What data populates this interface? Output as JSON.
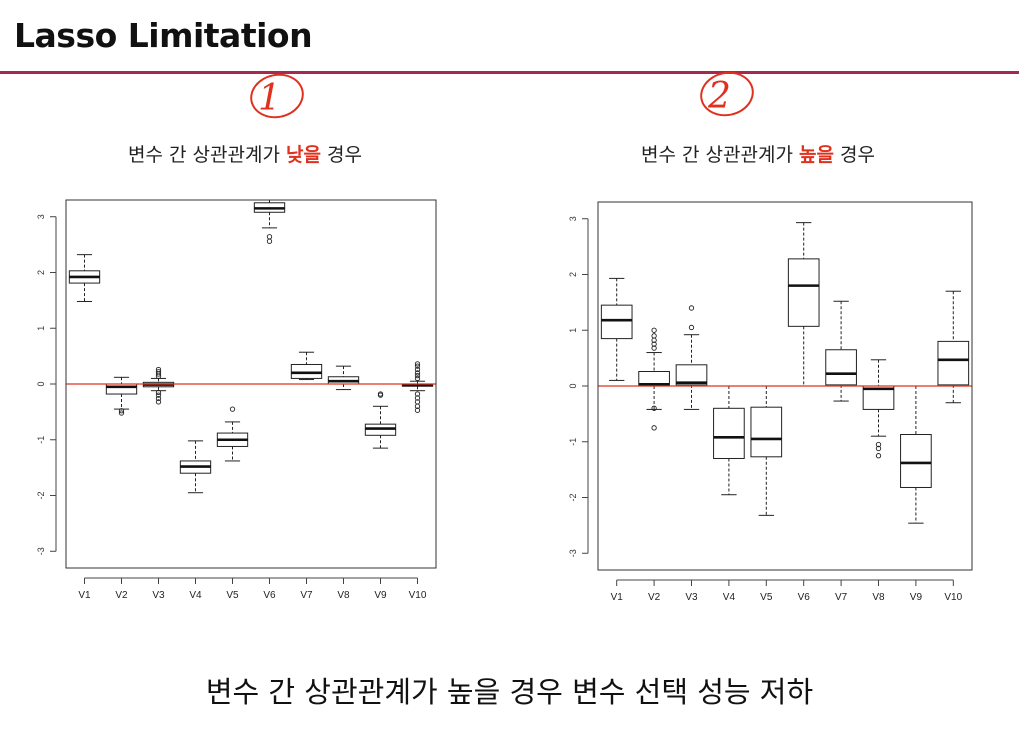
{
  "title": "Lasso Limitation",
  "annotations": [
    "1",
    "2"
  ],
  "captions": [
    {
      "before": "변수 간 상관관계가 ",
      "highlight": "낮을",
      "after": " 경우"
    },
    {
      "before": "변수 간 상관관계가 ",
      "highlight": "높을",
      "after": " 경우"
    }
  ],
  "conclusion": "변수 간 상관관계가 높을 경우 변수 선택 성능 저하",
  "colors": {
    "accent": "#e0301e",
    "rule": "#a52a52",
    "zero_line": "#e0301e"
  },
  "chart_data": [
    {
      "type": "boxplot",
      "categories": [
        "V1",
        "V2",
        "V3",
        "V4",
        "V5",
        "V6",
        "V7",
        "V8",
        "V9",
        "V10"
      ],
      "ylim": [
        -3.3,
        3.3
      ],
      "yticks": [
        -3,
        -2,
        -1,
        0,
        1,
        2,
        3
      ],
      "reference_line": 0,
      "boxes": [
        {
          "min": 1.48,
          "q1": 1.81,
          "median": 1.92,
          "q3": 2.03,
          "max": 2.32,
          "outliers": []
        },
        {
          "min": -0.45,
          "q1": -0.18,
          "median": -0.05,
          "q3": 0.0,
          "max": 0.12,
          "outliers": [
            -0.48,
            -0.52
          ]
        },
        {
          "min": -0.12,
          "q1": -0.05,
          "median": -0.01,
          "q3": 0.03,
          "max": 0.1,
          "outliers": [
            0.14,
            0.18,
            0.22,
            0.26,
            -0.15,
            -0.2,
            -0.26,
            -0.32
          ]
        },
        {
          "min": -1.95,
          "q1": -1.6,
          "median": -1.48,
          "q3": -1.38,
          "max": -1.02,
          "outliers": []
        },
        {
          "min": -1.38,
          "q1": -1.12,
          "median": -1.0,
          "q3": -0.88,
          "max": -0.68,
          "outliers": [
            -0.45
          ]
        },
        {
          "min": 2.8,
          "q1": 3.08,
          "median": 3.15,
          "q3": 3.25,
          "max": 3.3,
          "outliers": [
            2.64,
            2.56
          ]
        },
        {
          "min": 0.08,
          "q1": 0.1,
          "median": 0.2,
          "q3": 0.35,
          "max": 0.57,
          "outliers": []
        },
        {
          "min": -0.1,
          "q1": 0.0,
          "median": 0.05,
          "q3": 0.13,
          "max": 0.32,
          "outliers": []
        },
        {
          "min": -1.15,
          "q1": -0.92,
          "median": -0.8,
          "q3": -0.72,
          "max": -0.4,
          "outliers": [
            -0.18,
            -0.2
          ]
        },
        {
          "min": -0.12,
          "q1": -0.04,
          "median": -0.02,
          "q3": 0.0,
          "max": 0.05,
          "outliers": [
            0.1,
            0.15,
            0.2,
            0.26,
            0.32,
            0.36,
            -0.18,
            -0.25,
            -0.32,
            -0.4,
            -0.47
          ]
        }
      ]
    },
    {
      "type": "boxplot",
      "categories": [
        "V1",
        "V2",
        "V3",
        "V4",
        "V5",
        "V6",
        "V7",
        "V8",
        "V9",
        "V10"
      ],
      "ylim": [
        -3.3,
        3.3
      ],
      "yticks": [
        -3,
        -2,
        -1,
        0,
        1,
        2,
        3
      ],
      "reference_line": 0,
      "boxes": [
        {
          "min": 0.1,
          "q1": 0.85,
          "median": 1.18,
          "q3": 1.45,
          "max": 1.93,
          "outliers": []
        },
        {
          "min": -0.42,
          "q1": 0.0,
          "median": 0.03,
          "q3": 0.26,
          "max": 0.6,
          "outliers": [
            0.68,
            0.75,
            0.82,
            0.9,
            1.0,
            -0.4,
            -0.75
          ]
        },
        {
          "min": -0.42,
          "q1": 0.02,
          "median": 0.06,
          "q3": 0.38,
          "max": 0.92,
          "outliers": [
            1.05,
            1.4
          ]
        },
        {
          "min": -1.95,
          "q1": -1.3,
          "median": -0.92,
          "q3": -0.4,
          "max": 0.0,
          "outliers": []
        },
        {
          "min": -2.32,
          "q1": -1.27,
          "median": -0.95,
          "q3": -0.38,
          "max": 0.0,
          "outliers": []
        },
        {
          "min": 0.0,
          "q1": 1.07,
          "median": 1.8,
          "q3": 2.28,
          "max": 2.93,
          "outliers": []
        },
        {
          "min": -0.27,
          "q1": 0.02,
          "median": 0.22,
          "q3": 0.65,
          "max": 1.52,
          "outliers": []
        },
        {
          "min": -0.9,
          "q1": -0.42,
          "median": -0.05,
          "q3": 0.0,
          "max": 0.47,
          "outliers": [
            -1.05,
            -1.12,
            -1.25
          ]
        },
        {
          "min": -2.46,
          "q1": -1.82,
          "median": -1.38,
          "q3": -0.87,
          "max": 0.0,
          "outliers": []
        },
        {
          "min": -0.3,
          "q1": 0.02,
          "median": 0.47,
          "q3": 0.8,
          "max": 1.7,
          "outliers": []
        }
      ]
    }
  ]
}
